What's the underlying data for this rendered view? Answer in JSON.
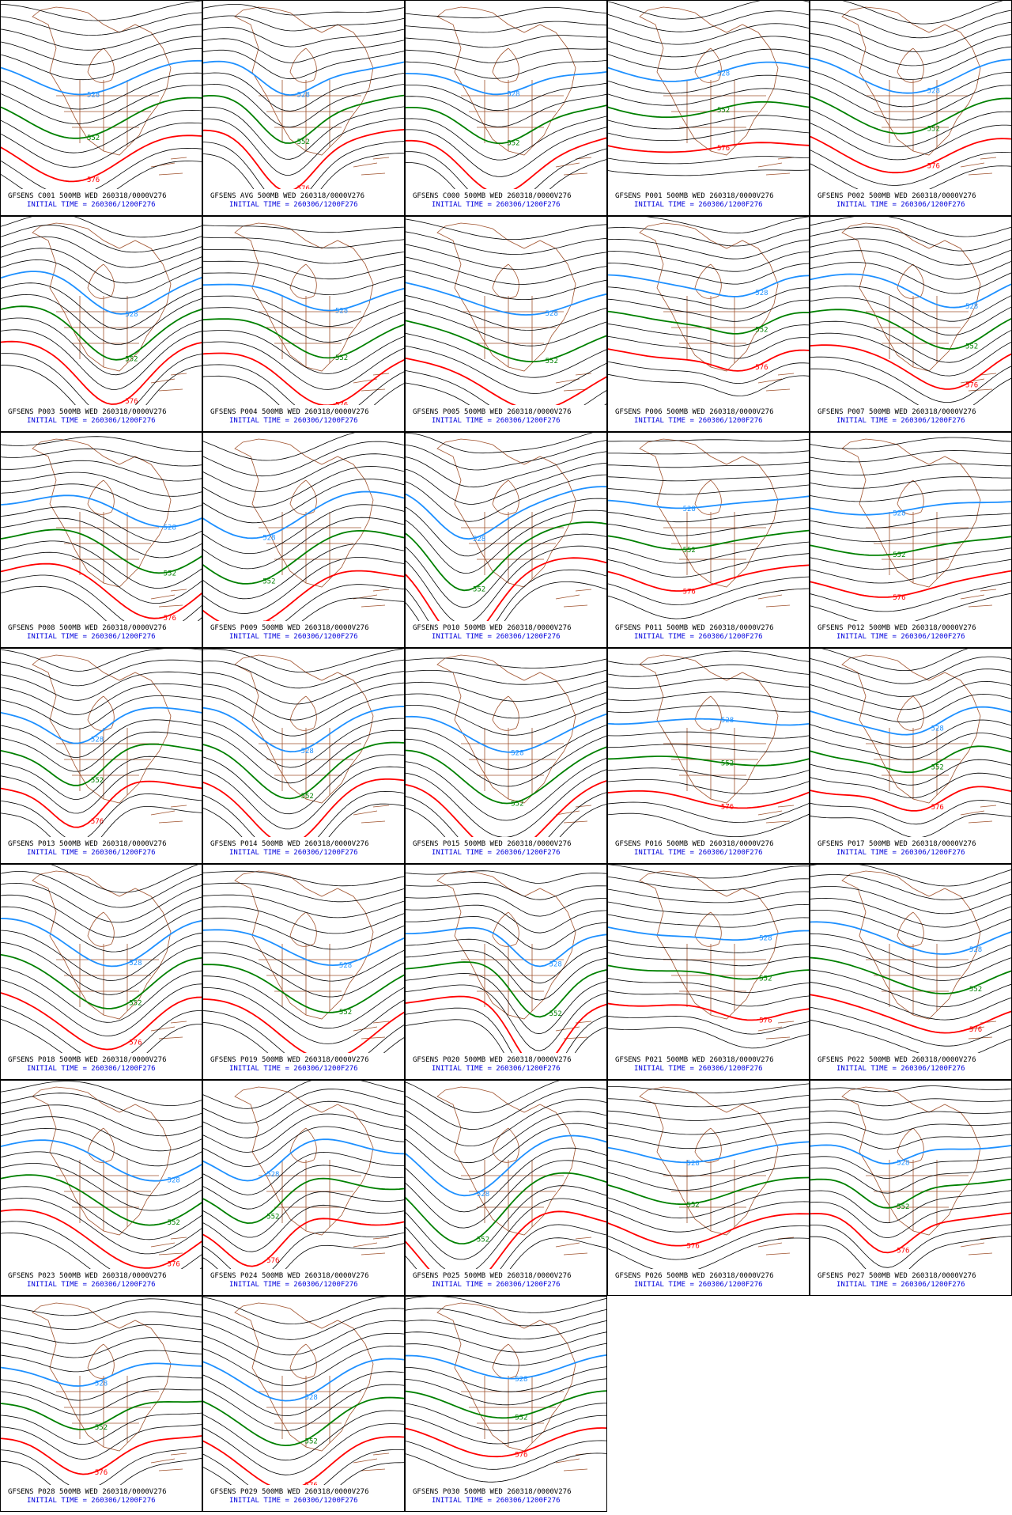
{
  "contours": [
    {
      "label": "528",
      "color": "#1e90ff"
    },
    {
      "label": "552",
      "color": "#008000"
    },
    {
      "label": "576",
      "color": "#ff0000"
    }
  ],
  "initial_time": "INITIAL TIME = 260306/1200F276",
  "panels": [
    "GFSENS C001 500MB WED 260318/0000V276",
    "GFSENS AVG 500MB WED 260318/0000V276",
    "GFSENS C000 500MB WED 260318/0000V276",
    "GFSENS P001 500MB WED 260318/0000V276",
    "GFSENS P002 500MB WED 260318/0000V276",
    "GFSENS P003 500MB WED 260318/0000V276",
    "GFSENS P004 500MB WED 260318/0000V276",
    "GFSENS P005 500MB WED 260318/0000V276",
    "GFSENS P006 500MB WED 260318/0000V276",
    "GFSENS P007 500MB WED 260318/0000V276",
    "GFSENS P008 500MB WED 260318/0000V276",
    "GFSENS P009 500MB WED 260318/0000V276",
    "GFSENS P010 500MB WED 260318/0000V276",
    "GFSENS P011 500MB WED 260318/0000V276",
    "GFSENS P012 500MB WED 260318/0000V276",
    "GFSENS P013 500MB WED 260318/0000V276",
    "GFSENS P014 500MB WED 260318/0000V276",
    "GFSENS P015 500MB WED 260318/0000V276",
    "GFSENS P016 500MB WED 260318/0000V276",
    "GFSENS P017 500MB WED 260318/0000V276",
    "GFSENS P018 500MB WED 260318/0000V276",
    "GFSENS P019 500MB WED 260318/0000V276",
    "GFSENS P020 500MB WED 260318/0000V276",
    "GFSENS P021 500MB WED 260318/0000V276",
    "GFSENS P022 500MB WED 260318/0000V276",
    "GFSENS P023 500MB WED 260318/0000V276",
    "GFSENS P024 500MB WED 260318/0000V276",
    "GFSENS P025 500MB WED 260318/0000V276",
    "GFSENS P026 500MB WED 260318/0000V276",
    "GFSENS P027 500MB WED 260318/0000V276",
    "GFSENS P028 500MB WED 260318/0000V276",
    "GFSENS P029 500MB WED 260318/0000V276",
    "GFSENS P030 500MB WED 260318/0000V276"
  ]
}
